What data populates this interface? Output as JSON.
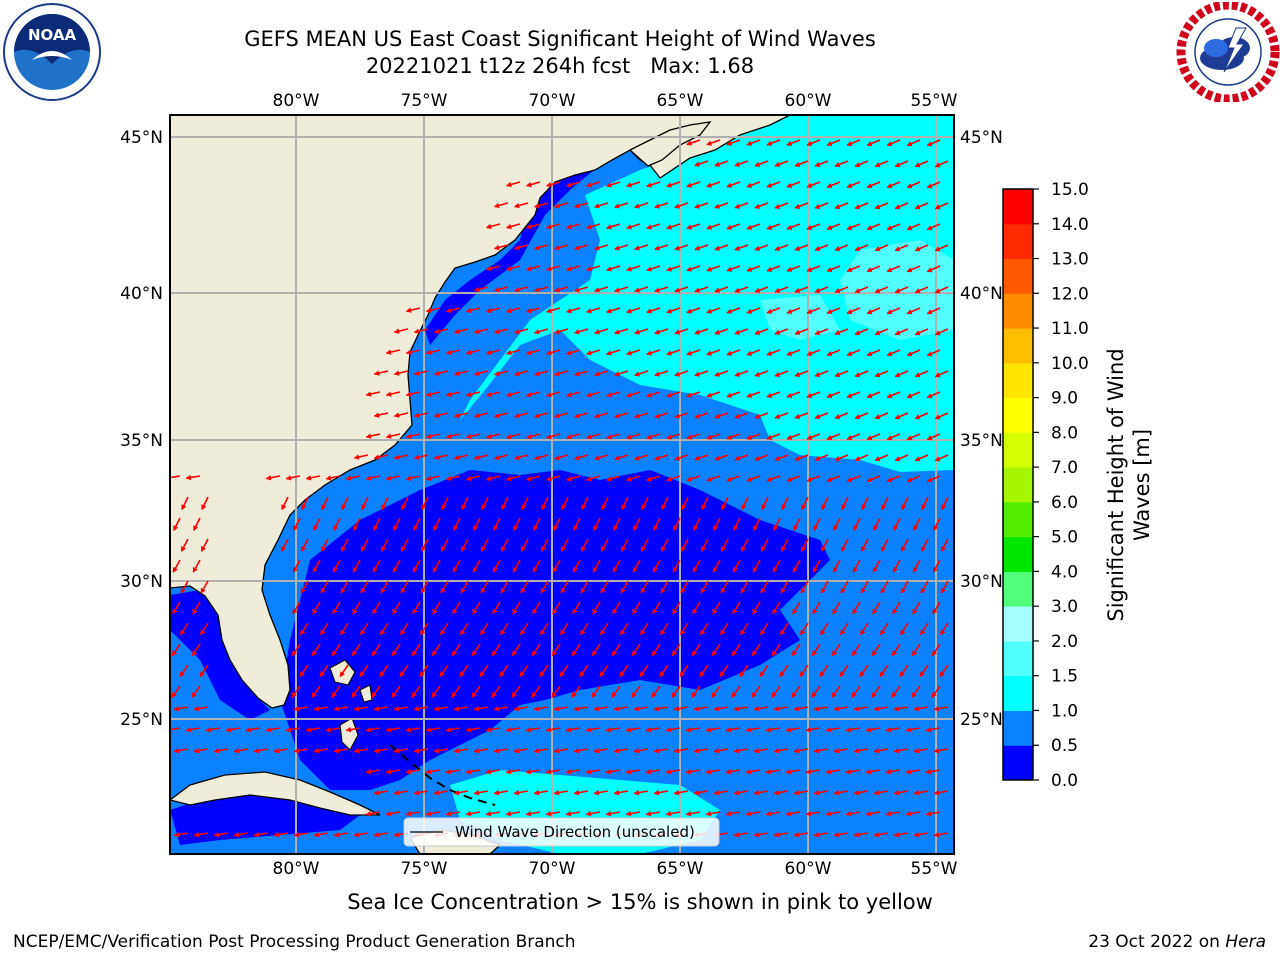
{
  "header": {
    "title_line1": "GEFS MEAN US East Coast Significant Height of Wind Waves",
    "title_line2": "20221021 t12z 264h fcst   Max: 1.68"
  },
  "logos": {
    "left": {
      "icon": "noaa-logo",
      "text": "NOAA"
    },
    "right": {
      "icon": "nws-logo"
    }
  },
  "map": {
    "lon_labels": [
      "80°W",
      "75°W",
      "70°W",
      "65°W",
      "60°W",
      "55°W"
    ],
    "lat_labels": [
      "45°N",
      "40°N",
      "35°N",
      "30°N",
      "25°N"
    ],
    "extent": {
      "lon_min": -85,
      "lon_max": -54.3,
      "lat_min": 20.2,
      "lat_max": 45.8
    },
    "land_color": "#efedd9",
    "arrow_color": "#ff0000",
    "gridlines": true,
    "legend": {
      "label": "Wind Wave Direction (unscaled)",
      "placement": "bottom-center"
    }
  },
  "colorbar": {
    "label": "Significant Height of Wind Waves [m]",
    "label_line1": "Significant Height of Wind",
    "label_line2": "Waves [m]",
    "ticks": [
      "0.0",
      "0.5",
      "1.0",
      "1.5",
      "2.0",
      "3.0",
      "4.0",
      "5.0",
      "6.0",
      "7.0",
      "8.0",
      "9.0",
      "10.0",
      "11.0",
      "12.0",
      "13.0",
      "14.0",
      "15.0"
    ],
    "colors": [
      "#0000ff",
      "#0a82ff",
      "#00ffff",
      "#52ffff",
      "#a6ffff",
      "#52ff7a",
      "#00e600",
      "#52ed00",
      "#a6f500",
      "#d4ff00",
      "#ffff00",
      "#ffe600",
      "#ffbd00",
      "#ff8c00",
      "#ff5a00",
      "#ff2a00",
      "#ff0000"
    ]
  },
  "note": "Sea Ice Concentration > 15% is shown in pink to yellow",
  "footer": {
    "left": "NCEP/EMC/Verification Post Processing Product Generation Branch",
    "right_date": "23 Oct 2022 on",
    "right_host": "Hera"
  }
}
